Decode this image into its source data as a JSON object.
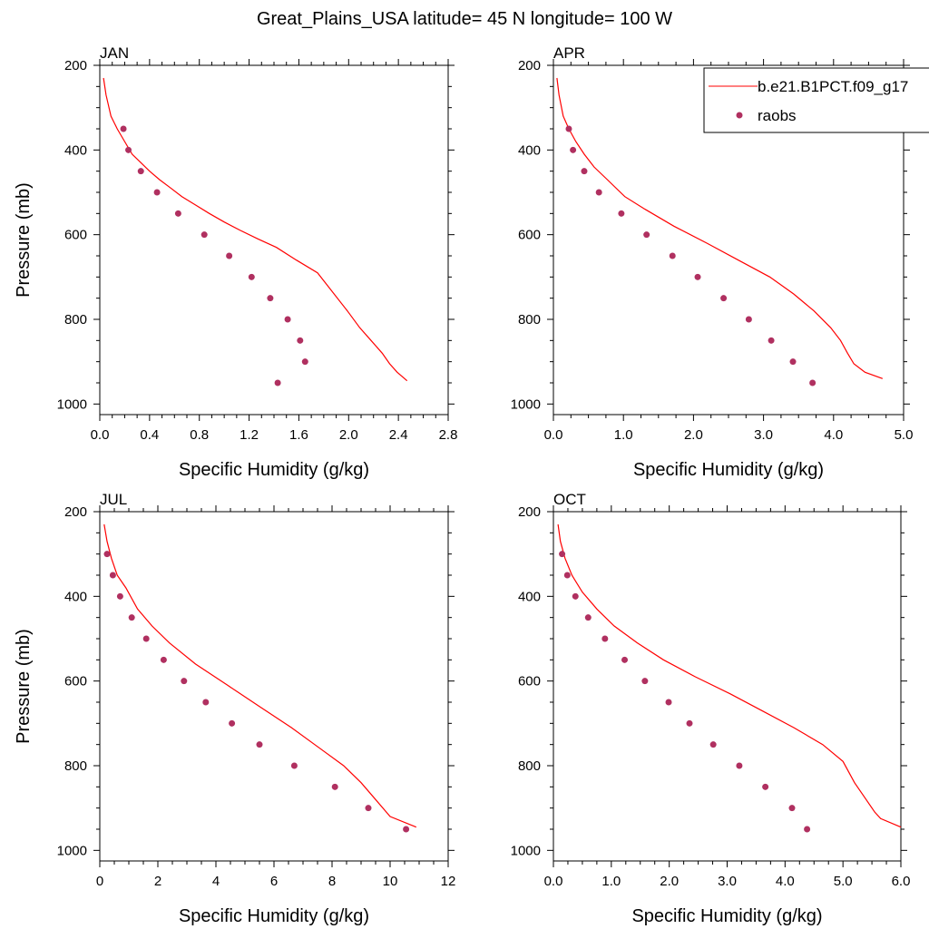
{
  "figure": {
    "title": "Great_Plains_USA  latitude= 45 N longitude= 100 W"
  },
  "colors": {
    "model_line": "#ff0000",
    "obs_marker": "#b03060"
  },
  "legend": {
    "entries": [
      "b.e21.B1PCT.f09_g17",
      "raobs"
    ]
  },
  "chart_data": [
    {
      "type": "line",
      "panel_label": "JAN",
      "xlabel": "Specific Humidity (g/kg)",
      "ylabel": "Pressure (mb)",
      "xlim": [
        0,
        2.8
      ],
      "ylim": [
        1025,
        200
      ],
      "xticks": [
        "0.0",
        "0.4",
        "0.8",
        "1.2",
        "1.6",
        "2.0",
        "2.4",
        "2.8"
      ],
      "yticks": [
        "200",
        "400",
        "600",
        "800",
        "1000"
      ],
      "series": [
        {
          "name": "b.e21.B1PCT.f09_g17",
          "style": "line",
          "x": [
            0.03,
            0.05,
            0.09,
            0.14,
            0.2,
            0.26,
            0.33,
            0.4,
            0.48,
            0.57,
            0.66,
            0.77,
            0.88,
            1.0,
            1.13,
            1.27,
            1.42,
            1.58,
            1.75,
            1.99,
            2.09,
            2.18,
            2.27,
            2.33,
            2.39,
            2.47
          ],
          "y": [
            230,
            270,
            320,
            350,
            380,
            410,
            430,
            450,
            470,
            490,
            510,
            530,
            550,
            570,
            590,
            610,
            630,
            660,
            690,
            780,
            820,
            850,
            880,
            905,
            925,
            945
          ]
        },
        {
          "name": "raobs",
          "style": "markers",
          "x": [
            0.19,
            0.23,
            0.33,
            0.46,
            0.63,
            0.84,
            1.04,
            1.22,
            1.37,
            1.51,
            1.61,
            1.65,
            1.43
          ],
          "y": [
            350,
            400,
            450,
            500,
            550,
            600,
            650,
            700,
            750,
            800,
            850,
            900,
            950
          ]
        }
      ]
    },
    {
      "type": "line",
      "panel_label": "APR",
      "xlabel": "Specific Humidity (g/kg)",
      "ylabel": "",
      "xlim": [
        0,
        5.0
      ],
      "ylim": [
        1025,
        200
      ],
      "xticks": [
        "0.0",
        "1.0",
        "2.0",
        "3.0",
        "4.0",
        "5.0"
      ],
      "yticks": [
        "200",
        "400",
        "600",
        "800",
        "1000"
      ],
      "series": [
        {
          "name": "b.e21.B1PCT.f09_g17",
          "style": "line",
          "x": [
            0.05,
            0.08,
            0.14,
            0.22,
            0.32,
            0.44,
            0.58,
            0.77,
            1.02,
            1.31,
            1.72,
            2.19,
            2.64,
            3.09,
            3.43,
            3.72,
            3.96,
            4.1,
            4.2,
            4.29,
            4.45,
            4.7
          ],
          "y": [
            230,
            270,
            320,
            350,
            380,
            410,
            440,
            470,
            510,
            540,
            580,
            620,
            660,
            700,
            740,
            780,
            820,
            850,
            880,
            905,
            925,
            940
          ]
        },
        {
          "name": "raobs",
          "style": "markers",
          "x": [
            0.22,
            0.28,
            0.44,
            0.65,
            0.97,
            1.33,
            1.7,
            2.06,
            2.43,
            2.79,
            3.11,
            3.42,
            3.7
          ],
          "y": [
            350,
            400,
            450,
            500,
            550,
            600,
            650,
            700,
            750,
            800,
            850,
            900,
            950
          ]
        }
      ]
    },
    {
      "type": "line",
      "panel_label": "JUL",
      "xlabel": "Specific Humidity (g/kg)",
      "ylabel": "Pressure (mb)",
      "xlim": [
        0,
        12
      ],
      "ylim": [
        1025,
        200
      ],
      "xticks": [
        "0",
        "2",
        "4",
        "6",
        "8",
        "10",
        "12"
      ],
      "yticks": [
        "200",
        "400",
        "600",
        "800",
        "1000"
      ],
      "series": [
        {
          "name": "b.e21.B1PCT.f09_g17",
          "style": "line",
          "x": [
            0.15,
            0.25,
            0.4,
            0.6,
            0.9,
            1.3,
            1.8,
            2.4,
            3.3,
            4.4,
            5.5,
            6.6,
            7.6,
            8.4,
            9.0,
            9.5,
            10.0,
            10.9
          ],
          "y": [
            230,
            270,
            310,
            350,
            380,
            430,
            470,
            510,
            560,
            610,
            660,
            710,
            760,
            800,
            840,
            880,
            920,
            945
          ]
        },
        {
          "name": "raobs",
          "style": "markers",
          "x": [
            0.25,
            0.45,
            0.7,
            1.1,
            1.6,
            2.2,
            2.9,
            3.65,
            4.55,
            5.5,
            6.7,
            8.1,
            9.25,
            10.55
          ],
          "y": [
            300,
            350,
            400,
            450,
            500,
            550,
            600,
            650,
            700,
            750,
            800,
            850,
            900,
            950
          ]
        }
      ]
    },
    {
      "type": "line",
      "panel_label": "OCT",
      "xlabel": "Specific Humidity (g/kg)",
      "ylabel": "",
      "xlim": [
        0,
        6.0
      ],
      "ylim": [
        1025,
        200
      ],
      "xticks": [
        "0.0",
        "1.0",
        "2.0",
        "3.0",
        "4.0",
        "5.0",
        "6.0"
      ],
      "yticks": [
        "200",
        "400",
        "600",
        "800",
        "1000"
      ],
      "series": [
        {
          "name": "b.e21.B1PCT.f09_g17",
          "style": "line",
          "x": [
            0.08,
            0.12,
            0.2,
            0.32,
            0.5,
            0.75,
            1.05,
            1.45,
            1.9,
            2.45,
            3.05,
            3.6,
            4.15,
            4.65,
            5.0,
            5.2,
            5.4,
            5.55,
            5.65,
            6.0
          ],
          "y": [
            230,
            270,
            310,
            350,
            390,
            430,
            470,
            510,
            550,
            590,
            630,
            670,
            710,
            750,
            790,
            840,
            880,
            910,
            925,
            945
          ]
        },
        {
          "name": "raobs",
          "style": "markers",
          "x": [
            0.15,
            0.24,
            0.38,
            0.6,
            0.89,
            1.23,
            1.58,
            1.99,
            2.35,
            2.76,
            3.21,
            3.66,
            4.12,
            4.38
          ],
          "y": [
            300,
            350,
            400,
            450,
            500,
            550,
            600,
            650,
            700,
            750,
            800,
            850,
            900,
            950
          ]
        }
      ]
    }
  ]
}
